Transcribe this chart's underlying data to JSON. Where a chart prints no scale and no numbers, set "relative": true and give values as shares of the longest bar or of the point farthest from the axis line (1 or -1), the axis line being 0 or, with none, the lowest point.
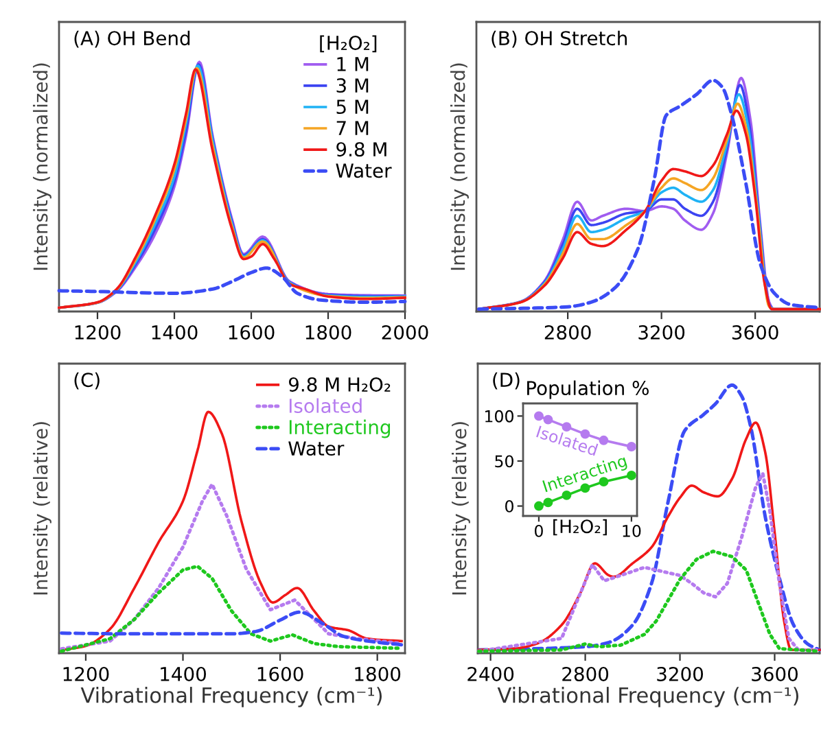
{
  "chart_data": [
    {
      "type": "line",
      "title": "(A) OH Bend",
      "ylabel": "Intensity (normalized)",
      "relative": true,
      "legend": "top right",
      "legend_title": "[H₂O₂]",
      "xlim": [
        1100,
        2000
      ],
      "xticks": [
        1200,
        1400,
        1600,
        1800,
        2000
      ],
      "series": [
        {
          "name": "1 M",
          "color": "#a05cf0",
          "x": [
            1100,
            1200,
            1250,
            1300,
            1350,
            1400,
            1430,
            1465,
            1500,
            1550,
            1580,
            1630,
            1700,
            1800,
            1900,
            2000
          ],
          "values": [
            0.015,
            0.035,
            0.08,
            0.18,
            0.31,
            0.5,
            0.7,
            1.0,
            0.7,
            0.37,
            0.23,
            0.3,
            0.12,
            0.07,
            0.065,
            0.064
          ]
        },
        {
          "name": "3 M",
          "color": "#3c44f2",
          "x": [
            1100,
            1200,
            1250,
            1300,
            1350,
            1400,
            1430,
            1463,
            1500,
            1550,
            1580,
            1630,
            1700,
            1800,
            1900,
            2000
          ],
          "values": [
            0.015,
            0.035,
            0.083,
            0.19,
            0.33,
            0.52,
            0.72,
            0.99,
            0.69,
            0.36,
            0.225,
            0.29,
            0.117,
            0.067,
            0.062,
            0.062
          ]
        },
        {
          "name": "5 M",
          "color": "#1fb2f5",
          "x": [
            1100,
            1200,
            1250,
            1300,
            1350,
            1400,
            1430,
            1461,
            1500,
            1550,
            1580,
            1630,
            1700,
            1800,
            1900,
            2000
          ],
          "values": [
            0.015,
            0.036,
            0.085,
            0.2,
            0.35,
            0.54,
            0.75,
            0.985,
            0.68,
            0.35,
            0.22,
            0.285,
            0.115,
            0.064,
            0.058,
            0.06
          ]
        },
        {
          "name": "7 M",
          "color": "#f5a524",
          "x": [
            1100,
            1200,
            1250,
            1300,
            1350,
            1400,
            1430,
            1458,
            1500,
            1550,
            1580,
            1630,
            1700,
            1800,
            1900,
            2000
          ],
          "values": [
            0.015,
            0.036,
            0.088,
            0.21,
            0.37,
            0.57,
            0.77,
            0.975,
            0.66,
            0.34,
            0.215,
            0.28,
            0.112,
            0.062,
            0.054,
            0.057
          ]
        },
        {
          "name": "9.8 M",
          "color": "#f01818",
          "x": [
            1100,
            1200,
            1250,
            1300,
            1350,
            1400,
            1430,
            1455,
            1500,
            1550,
            1580,
            1600,
            1630,
            1660,
            1700,
            1740,
            1800,
            1900,
            2000
          ],
          "values": [
            0.015,
            0.037,
            0.09,
            0.22,
            0.385,
            0.59,
            0.79,
            0.97,
            0.64,
            0.33,
            0.21,
            0.22,
            0.27,
            0.21,
            0.11,
            0.09,
            0.06,
            0.05,
            0.055
          ]
        },
        {
          "name": "Water",
          "color": "#3b4cf5",
          "line_style": "dashed",
          "x": [
            1100,
            1200,
            1400,
            1500,
            1550,
            1600,
            1640,
            1680,
            1720,
            1780,
            1900,
            2000
          ],
          "values": [
            0.083,
            0.08,
            0.073,
            0.09,
            0.12,
            0.156,
            0.174,
            0.14,
            0.073,
            0.046,
            0.037,
            0.04
          ]
        }
      ]
    },
    {
      "type": "line",
      "title": "(B) OH Stretch",
      "ylabel": "Intensity (normalized)",
      "relative": true,
      "xlim": [
        2410,
        3875
      ],
      "xticks": [
        2800,
        3200,
        3600
      ],
      "series": [
        {
          "color": "#a05cf0",
          "x": [
            2420,
            2600,
            2700,
            2780,
            2840,
            2900,
            2950,
            3050,
            3130,
            3200,
            3250,
            3300,
            3370,
            3420,
            3480,
            3540,
            3580,
            3620,
            3660,
            3680,
            3875
          ],
          "values": [
            0.01,
            0.043,
            0.13,
            0.31,
            0.47,
            0.39,
            0.41,
            0.44,
            0.43,
            0.45,
            0.44,
            0.39,
            0.35,
            0.42,
            0.68,
            1.0,
            0.82,
            0.39,
            0.04,
            0.01,
            0.01
          ]
        },
        {
          "color": "#3c44f2",
          "x": [
            2420,
            2600,
            2700,
            2780,
            2840,
            2900,
            2950,
            3050,
            3130,
            3200,
            3250,
            3300,
            3370,
            3420,
            3480,
            3535,
            3575,
            3615,
            3660,
            3680,
            3875
          ],
          "values": [
            0.01,
            0.042,
            0.125,
            0.29,
            0.44,
            0.37,
            0.38,
            0.42,
            0.43,
            0.48,
            0.48,
            0.44,
            0.41,
            0.47,
            0.7,
            0.97,
            0.8,
            0.42,
            0.03,
            0.01,
            0.01
          ]
        },
        {
          "color": "#1fb2f5",
          "x": [
            2420,
            2600,
            2700,
            2780,
            2840,
            2900,
            2950,
            3050,
            3130,
            3200,
            3250,
            3300,
            3370,
            3420,
            3480,
            3530,
            3570,
            3610,
            3660,
            3680,
            3875
          ],
          "values": [
            0.01,
            0.041,
            0.12,
            0.27,
            0.41,
            0.34,
            0.35,
            0.4,
            0.43,
            0.51,
            0.53,
            0.5,
            0.47,
            0.52,
            0.72,
            0.93,
            0.79,
            0.45,
            0.025,
            0.01,
            0.01
          ]
        },
        {
          "color": "#f5a524",
          "x": [
            2420,
            2600,
            2700,
            2780,
            2840,
            2900,
            2950,
            3050,
            3130,
            3200,
            3250,
            3300,
            3370,
            3420,
            3480,
            3525,
            3565,
            3605,
            3660,
            3680,
            3875
          ],
          "values": [
            0.01,
            0.04,
            0.115,
            0.25,
            0.375,
            0.31,
            0.31,
            0.37,
            0.43,
            0.53,
            0.57,
            0.55,
            0.52,
            0.57,
            0.74,
            0.89,
            0.77,
            0.47,
            0.02,
            0.01,
            0.01
          ]
        },
        {
          "color": "#f01818",
          "x": [
            2420,
            2600,
            2700,
            2780,
            2840,
            2900,
            2950,
            3050,
            3130,
            3200,
            3250,
            3300,
            3370,
            3420,
            3480,
            3520,
            3560,
            3600,
            3640,
            3670,
            3875
          ],
          "values": [
            0.01,
            0.04,
            0.11,
            0.23,
            0.34,
            0.29,
            0.28,
            0.35,
            0.43,
            0.56,
            0.61,
            0.6,
            0.58,
            0.625,
            0.76,
            0.86,
            0.76,
            0.49,
            0.12,
            0.01,
            0.01
          ]
        },
        {
          "color": "#3b4cf5",
          "line_style": "dashed",
          "x": [
            2420,
            2800,
            2900,
            3000,
            3100,
            3170,
            3220,
            3280,
            3350,
            3420,
            3460,
            3500,
            3560,
            3620,
            3680,
            3750,
            3875
          ],
          "values": [
            0.01,
            0.02,
            0.04,
            0.1,
            0.27,
            0.57,
            0.84,
            0.88,
            0.93,
            0.99,
            0.96,
            0.84,
            0.55,
            0.21,
            0.08,
            0.03,
            0.016
          ]
        }
      ]
    },
    {
      "type": "line",
      "title": "(C)",
      "ylabel": "Intensity (relative)",
      "xlabel": "Vibrational Frequency (cm⁻¹)",
      "relative": true,
      "legend": "top right",
      "xlim": [
        1145,
        1857
      ],
      "xticks": [
        1200,
        1400,
        1600,
        1800
      ],
      "series": [
        {
          "name": "9.8 M H₂O₂",
          "color": "#f01818",
          "x": [
            1150,
            1200,
            1250,
            1300,
            1350,
            1400,
            1430,
            1452,
            1480,
            1520,
            1560,
            1585,
            1610,
            1635,
            1670,
            1700,
            1740,
            1780,
            1850
          ],
          "values": [
            0.013,
            0.03,
            0.1,
            0.27,
            0.46,
            0.63,
            0.84,
            1.0,
            0.91,
            0.55,
            0.29,
            0.21,
            0.24,
            0.27,
            0.175,
            0.11,
            0.095,
            0.06,
            0.05
          ]
        },
        {
          "name": "Isolated",
          "color": "#b57bef",
          "line_style": "dotted",
          "x": [
            1150,
            1250,
            1300,
            1350,
            1400,
            1440,
            1460,
            1490,
            1530,
            1580,
            1630,
            1670,
            1700,
            1760,
            1850
          ],
          "values": [
            0.018,
            0.05,
            0.14,
            0.27,
            0.44,
            0.63,
            0.7,
            0.57,
            0.35,
            0.18,
            0.22,
            0.14,
            0.08,
            0.06,
            0.04
          ]
        },
        {
          "name": "Interacting",
          "color": "#1ec81e",
          "line_style": "dotted",
          "x": [
            1150,
            1250,
            1300,
            1350,
            1400,
            1430,
            1460,
            1500,
            1540,
            1580,
            1625,
            1670,
            1720,
            1850
          ],
          "values": [
            0.008,
            0.06,
            0.14,
            0.25,
            0.345,
            0.36,
            0.31,
            0.175,
            0.08,
            0.05,
            0.076,
            0.04,
            0.027,
            0.02
          ]
        },
        {
          "name": "Water",
          "color": "#3b4cf5",
          "line_style": "dashed",
          "x": [
            1150,
            1300,
            1500,
            1550,
            1600,
            1640,
            1690,
            1730,
            1800,
            1850
          ],
          "values": [
            0.083,
            0.08,
            0.08,
            0.09,
            0.137,
            0.17,
            0.12,
            0.07,
            0.045,
            0.035
          ]
        }
      ]
    },
    {
      "type": "line",
      "title": "(D)",
      "ylabel": "Intensity (relative)",
      "xlabel": "Vibrational Frequency (cm⁻¹)",
      "relative": true,
      "xlim": [
        2346,
        3790
      ],
      "xticks": [
        2400,
        2800,
        3200,
        3600
      ],
      "series": [
        {
          "color": "#3b4cf5",
          "line_style": "dashed",
          "x": [
            2350,
            2800,
            2900,
            3000,
            3080,
            3150,
            3220,
            3300,
            3350,
            3420,
            3460,
            3500,
            3560,
            3620,
            3680,
            3740,
            3790
          ],
          "values": [
            0.012,
            0.024,
            0.04,
            0.105,
            0.26,
            0.565,
            0.83,
            0.89,
            0.93,
            1.0,
            0.96,
            0.84,
            0.51,
            0.28,
            0.105,
            0.034,
            0.012
          ]
        },
        {
          "color": "#f01818",
          "x": [
            2350,
            2500,
            2600,
            2700,
            2780,
            2840,
            2900,
            2920,
            3000,
            3080,
            3150,
            3200,
            3250,
            3300,
            3360,
            3420,
            3480,
            3520,
            3560,
            3600,
            3640,
            3670,
            3790
          ],
          "values": [
            0.012,
            0.017,
            0.037,
            0.105,
            0.225,
            0.335,
            0.29,
            0.285,
            0.335,
            0.395,
            0.51,
            0.58,
            0.625,
            0.6,
            0.585,
            0.65,
            0.8,
            0.86,
            0.75,
            0.45,
            0.12,
            0.012,
            0.012
          ]
        },
        {
          "color": "#b57bef",
          "line_style": "dotted",
          "x": [
            2350,
            2700,
            2780,
            2830,
            2880,
            2950,
            3050,
            3150,
            3200,
            3250,
            3300,
            3350,
            3400,
            3460,
            3520,
            3550,
            3580,
            3620,
            3660,
            3700,
            3790
          ],
          "values": [
            0.007,
            0.055,
            0.225,
            0.33,
            0.27,
            0.29,
            0.32,
            0.3,
            0.29,
            0.26,
            0.225,
            0.21,
            0.26,
            0.43,
            0.62,
            0.67,
            0.53,
            0.26,
            0.055,
            0.012,
            0.012
          ]
        },
        {
          "color": "#1ec81e",
          "line_style": "dotted",
          "x": [
            2350,
            2700,
            2800,
            2860,
            2950,
            3050,
            3100,
            3200,
            3270,
            3340,
            3420,
            3480,
            3530,
            3580,
            3620,
            3790
          ],
          "values": [
            0.007,
            0.012,
            0.034,
            0.024,
            0.03,
            0.07,
            0.12,
            0.275,
            0.35,
            0.38,
            0.36,
            0.31,
            0.19,
            0.07,
            0.017,
            0.007
          ]
        }
      ]
    },
    {
      "type": "line",
      "title": "Population %",
      "xlabel": "[H₂O₂]",
      "marker": "circle",
      "xlim": [
        -1.7,
        10.6
      ],
      "ylim": [
        -11,
        114
      ],
      "xticks": [
        0,
        10
      ],
      "yticks": [
        0,
        50,
        100
      ],
      "series": [
        {
          "name": "Isolated",
          "color": "#b57bef",
          "x": [
            0,
            1,
            3,
            5,
            7,
            10
          ],
          "values": [
            100,
            96,
            88,
            80,
            73,
            66
          ]
        },
        {
          "name": "Interacting",
          "color": "#1ec81e",
          "x": [
            0,
            1,
            3,
            5,
            7,
            10
          ],
          "values": [
            0,
            4,
            12,
            20,
            27,
            34
          ]
        }
      ]
    }
  ]
}
